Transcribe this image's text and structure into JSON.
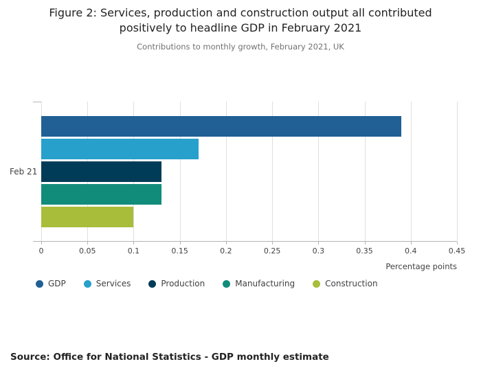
{
  "title": "Figure 2: Services, production and construction output all contributed positively to headline GDP in February 2021",
  "subtitle": "Contributions to monthly growth, February 2021, UK",
  "source": "Source: Office for National Statistics - GDP monthly estimate",
  "chart_data": {
    "type": "bar",
    "orientation": "horizontal",
    "title": "Figure 2: Services, production and construction output all contributed positively to headline GDP in February 2021",
    "subtitle": "Contributions to monthly growth, February 2021, UK",
    "categories": [
      "Feb 21"
    ],
    "series": [
      {
        "name": "GDP",
        "values": [
          0.39
        ],
        "color": "#206095"
      },
      {
        "name": "Services",
        "values": [
          0.17
        ],
        "color": "#27A0CC"
      },
      {
        "name": "Production",
        "values": [
          0.13
        ],
        "color": "#003C57"
      },
      {
        "name": "Manufacturing",
        "values": [
          0.13
        ],
        "color": "#118C7B"
      },
      {
        "name": "Construction",
        "values": [
          0.1
        ],
        "color": "#A8BD3A"
      }
    ],
    "xlabel": "Percentage points",
    "ylabel": "",
    "xlim": [
      0,
      0.45
    ],
    "xticks": [
      0,
      0.05,
      0.1,
      0.15,
      0.2,
      0.25,
      0.3,
      0.35,
      0.4,
      0.45
    ],
    "xtick_labels": [
      "0",
      "0.05",
      "0.1",
      "0.15",
      "0.2",
      "0.25",
      "0.3",
      "0.35",
      "0.4",
      "0.45"
    ],
    "grid": true,
    "legend_position": "bottom"
  }
}
